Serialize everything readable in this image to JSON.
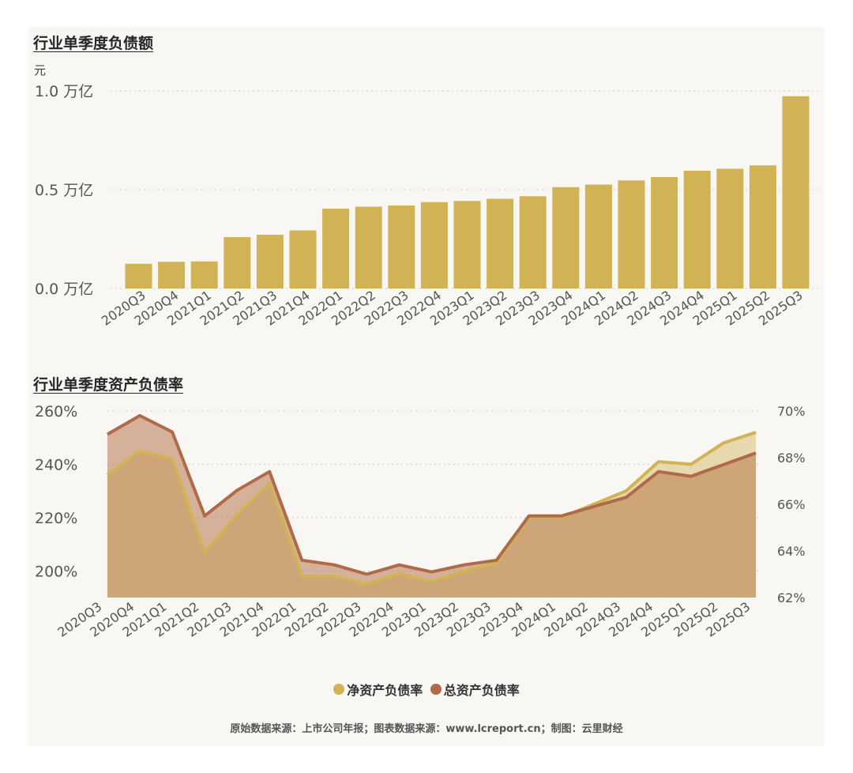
{
  "chart_data": [
    {
      "type": "bar",
      "title": "行业单季度负债额",
      "unit_label": "元",
      "categories": [
        "2020Q3",
        "2020Q4",
        "2021Q1",
        "2021Q2",
        "2021Q3",
        "2021Q4",
        "2022Q1",
        "2022Q2",
        "2022Q3",
        "2022Q4",
        "2023Q1",
        "2023Q2",
        "2023Q3",
        "2023Q4",
        "2024Q1",
        "2024Q2",
        "2024Q3",
        "2024Q4",
        "2025Q1",
        "2025Q2",
        "2025Q3"
      ],
      "values": [
        0.125,
        0.135,
        0.137,
        0.26,
        0.272,
        0.294,
        0.404,
        0.414,
        0.42,
        0.437,
        0.443,
        0.454,
        0.467,
        0.513,
        0.526,
        0.547,
        0.564,
        0.596,
        0.606,
        0.623,
        0.973
      ],
      "ylim": [
        0,
        1.0
      ],
      "yticks": [
        0.0,
        0.5,
        1.0
      ],
      "ytick_labels": [
        "0.0 万亿",
        "0.5 万亿",
        "1.0 万亿"
      ],
      "grid": true,
      "color": "#d1b356"
    },
    {
      "type": "area",
      "title": "行业单季度资产负债率",
      "categories": [
        "2020Q3",
        "2020Q4",
        "2021Q1",
        "2021Q2",
        "2021Q3",
        "2021Q4",
        "2022Q1",
        "2022Q2",
        "2022Q3",
        "2022Q4",
        "2023Q1",
        "2023Q2",
        "2023Q3",
        "2023Q4",
        "2024Q1",
        "2024Q2",
        "2024Q3",
        "2024Q4",
        "2025Q1",
        "2025Q2",
        "2025Q3"
      ],
      "series": [
        {
          "name": "净资产负债率",
          "axis": "left",
          "color": "#d1b356",
          "values": [
            236,
            245,
            242,
            207,
            221,
            233,
            198,
            198,
            195,
            199,
            196,
            200,
            203,
            220,
            220,
            225,
            230,
            241,
            240,
            248,
            252
          ]
        },
        {
          "name": "总资产负债率",
          "axis": "right",
          "color": "#b06a48",
          "values": [
            69.0,
            69.8,
            69.1,
            65.5,
            66.6,
            67.4,
            63.6,
            63.4,
            63.0,
            63.4,
            63.1,
            63.4,
            63.6,
            65.5,
            65.5,
            65.9,
            66.3,
            67.4,
            67.2,
            67.7,
            68.2
          ]
        }
      ],
      "ylim_left": [
        190,
        260
      ],
      "yticks_left": [
        200,
        220,
        240,
        260
      ],
      "ytick_labels_left": [
        "200%",
        "220%",
        "240%",
        "260%"
      ],
      "ylim_right": [
        62,
        70
      ],
      "yticks_right": [
        62,
        64,
        66,
        68,
        70
      ],
      "ytick_labels_right": [
        "62%",
        "64%",
        "66%",
        "68%",
        "70%"
      ],
      "legend_position": "bottom-center",
      "grid": true
    }
  ],
  "legend": [
    {
      "label": "净资产负债率",
      "color": "#d1b356"
    },
    {
      "label": "总资产负债率",
      "color": "#b06a48"
    }
  ],
  "source": "原始数据来源：上市公司年报；图表数据来源：www.lcreport.cn；制图：云里财经"
}
